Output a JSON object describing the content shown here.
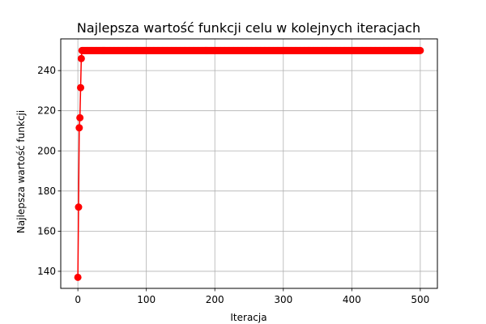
{
  "chart_data": {
    "type": "line",
    "title": "Najlepsza wartość funkcji celu w kolejnych iteracjach",
    "xlabel": "Iteracja",
    "ylabel": "Najlepsza wartość funkcji",
    "xlim": [
      -25,
      525
    ],
    "ylim": [
      131.5,
      255.8
    ],
    "xticks": [
      0,
      100,
      200,
      300,
      400,
      500
    ],
    "yticks": [
      140,
      160,
      180,
      200,
      220,
      240
    ],
    "grid": true,
    "colors": {
      "series": "#ff0000"
    },
    "marker": "circle",
    "series": [
      {
        "x_start": 0,
        "x_end": 500,
        "x_step": 1,
        "initial_values": [
          137,
          172,
          211.5,
          216.5,
          231.5,
          246
        ],
        "plateau_value": 250
      }
    ]
  }
}
